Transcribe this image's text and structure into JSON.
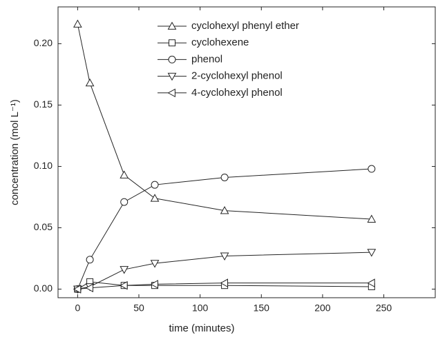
{
  "chart_data": {
    "type": "line",
    "xlabel": "time (minutes)",
    "ylabel": "concentration (mol L⁻¹)",
    "x": [
      0,
      10,
      38,
      63,
      120,
      240
    ],
    "series": [
      {
        "name": "cyclohexyl phenyl ether",
        "color": "#222222",
        "marker": "triangle-up",
        "values": [
          0.216,
          0.168,
          0.093,
          0.074,
          0.064,
          0.057
        ]
      },
      {
        "name": "cyclohexene",
        "color": "#222222",
        "marker": "square",
        "values": [
          0,
          0.006,
          0.003,
          0.003,
          0.003,
          0.002
        ]
      },
      {
        "name": "phenol",
        "color": "#222222",
        "marker": "circle",
        "values": [
          0,
          0.024,
          0.071,
          0.085,
          0.091,
          0.098
        ]
      },
      {
        "name": "2-cyclohexyl phenol",
        "color": "#222222",
        "marker": "triangle-down",
        "values": [
          0,
          0.002,
          0.016,
          0.021,
          0.027,
          0.03
        ]
      },
      {
        "name": "4-cyclohexyl phenol",
        "color": "#222222",
        "marker": "triangle-left",
        "values": [
          0,
          0.001,
          0.003,
          0.004,
          0.005,
          0.005
        ]
      }
    ],
    "xlim": [
      -16,
      292
    ],
    "xticks": [
      0,
      50,
      100,
      150,
      200,
      250
    ],
    "ylim": [
      -0.007,
      0.23
    ],
    "yticks": [
      {
        "value": 0,
        "label": "0.00"
      },
      {
        "value": 0.05,
        "label": "0.05"
      },
      {
        "value": 0.1,
        "label": "0.10"
      },
      {
        "value": 0.15,
        "label": "0.15"
      },
      {
        "value": 0.2,
        "label": "0.20"
      }
    ],
    "legend": "upper center",
    "grid": false
  }
}
